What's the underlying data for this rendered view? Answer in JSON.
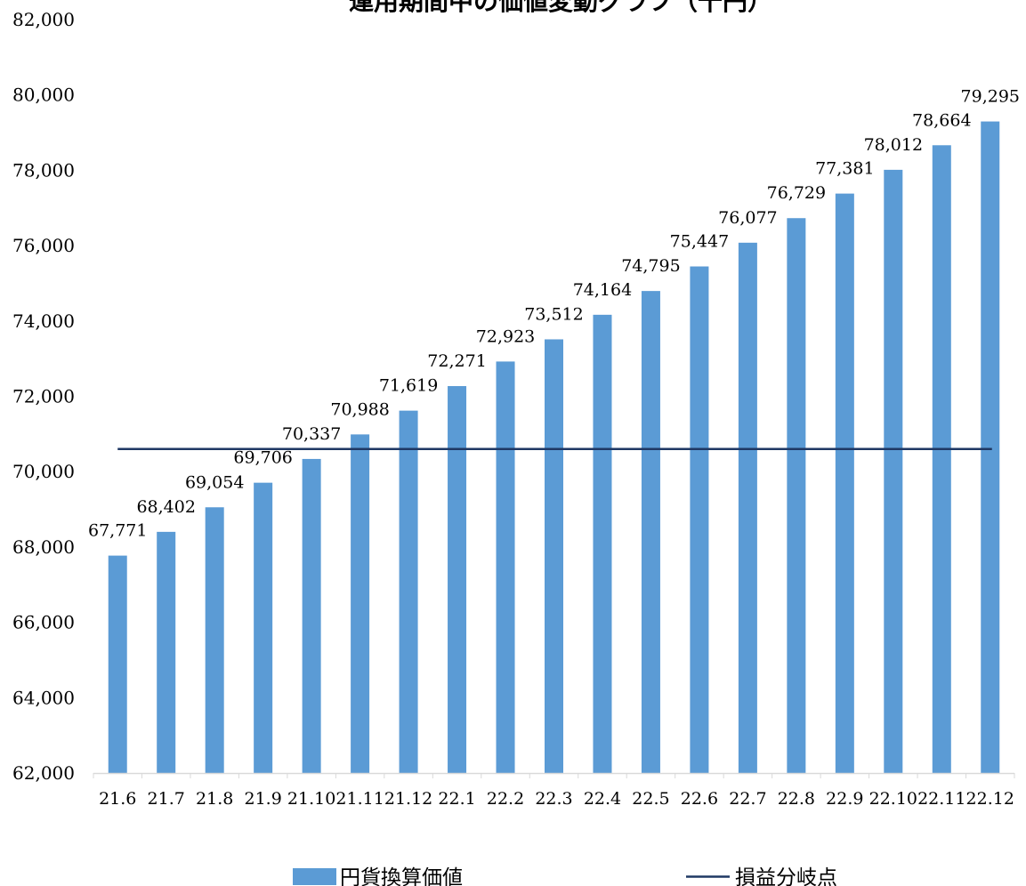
{
  "chart_data": {
    "type": "bar",
    "title": "運用期間中の価値変動グラフ（千円）",
    "categories": [
      "21.6",
      "21.7",
      "21.8",
      "21.9",
      "21.10",
      "21.11",
      "21.12",
      "22.1",
      "22.2",
      "22.3",
      "22.4",
      "22.5",
      "22.6",
      "22.7",
      "22.8",
      "22.9",
      "22.10",
      "22.11",
      "22.12"
    ],
    "series": [
      {
        "name": "円貨換算価値",
        "type": "bar",
        "color": "#5b9bd5",
        "values": [
          67771,
          68402,
          69054,
          69706,
          70337,
          70988,
          71619,
          72271,
          72923,
          73512,
          74164,
          74795,
          75447,
          76077,
          76729,
          77381,
          78012,
          78664,
          79295
        ],
        "value_labels": [
          "67,771",
          "68,402",
          "69,054",
          "69,706",
          "70,337",
          "70,988",
          "71,619",
          "72,271",
          "72,923",
          "73,512",
          "74,164",
          "74,795",
          "75,447",
          "76,077",
          "76,729",
          "77,381",
          "78,012",
          "78,664",
          "79,295"
        ]
      },
      {
        "name": "損益分岐点",
        "type": "line",
        "color": "#1f3864",
        "value": 70600
      }
    ],
    "ylim": [
      62000,
      82000
    ],
    "yticks": [
      62000,
      64000,
      66000,
      68000,
      70000,
      72000,
      74000,
      76000,
      78000,
      80000,
      82000
    ],
    "ytick_labels": [
      "62,000",
      "64,000",
      "66,000",
      "68,000",
      "70,000",
      "72,000",
      "74,000",
      "76,000",
      "78,000",
      "80,000",
      "82,000"
    ],
    "grid": false,
    "legend_position": "bottom"
  }
}
